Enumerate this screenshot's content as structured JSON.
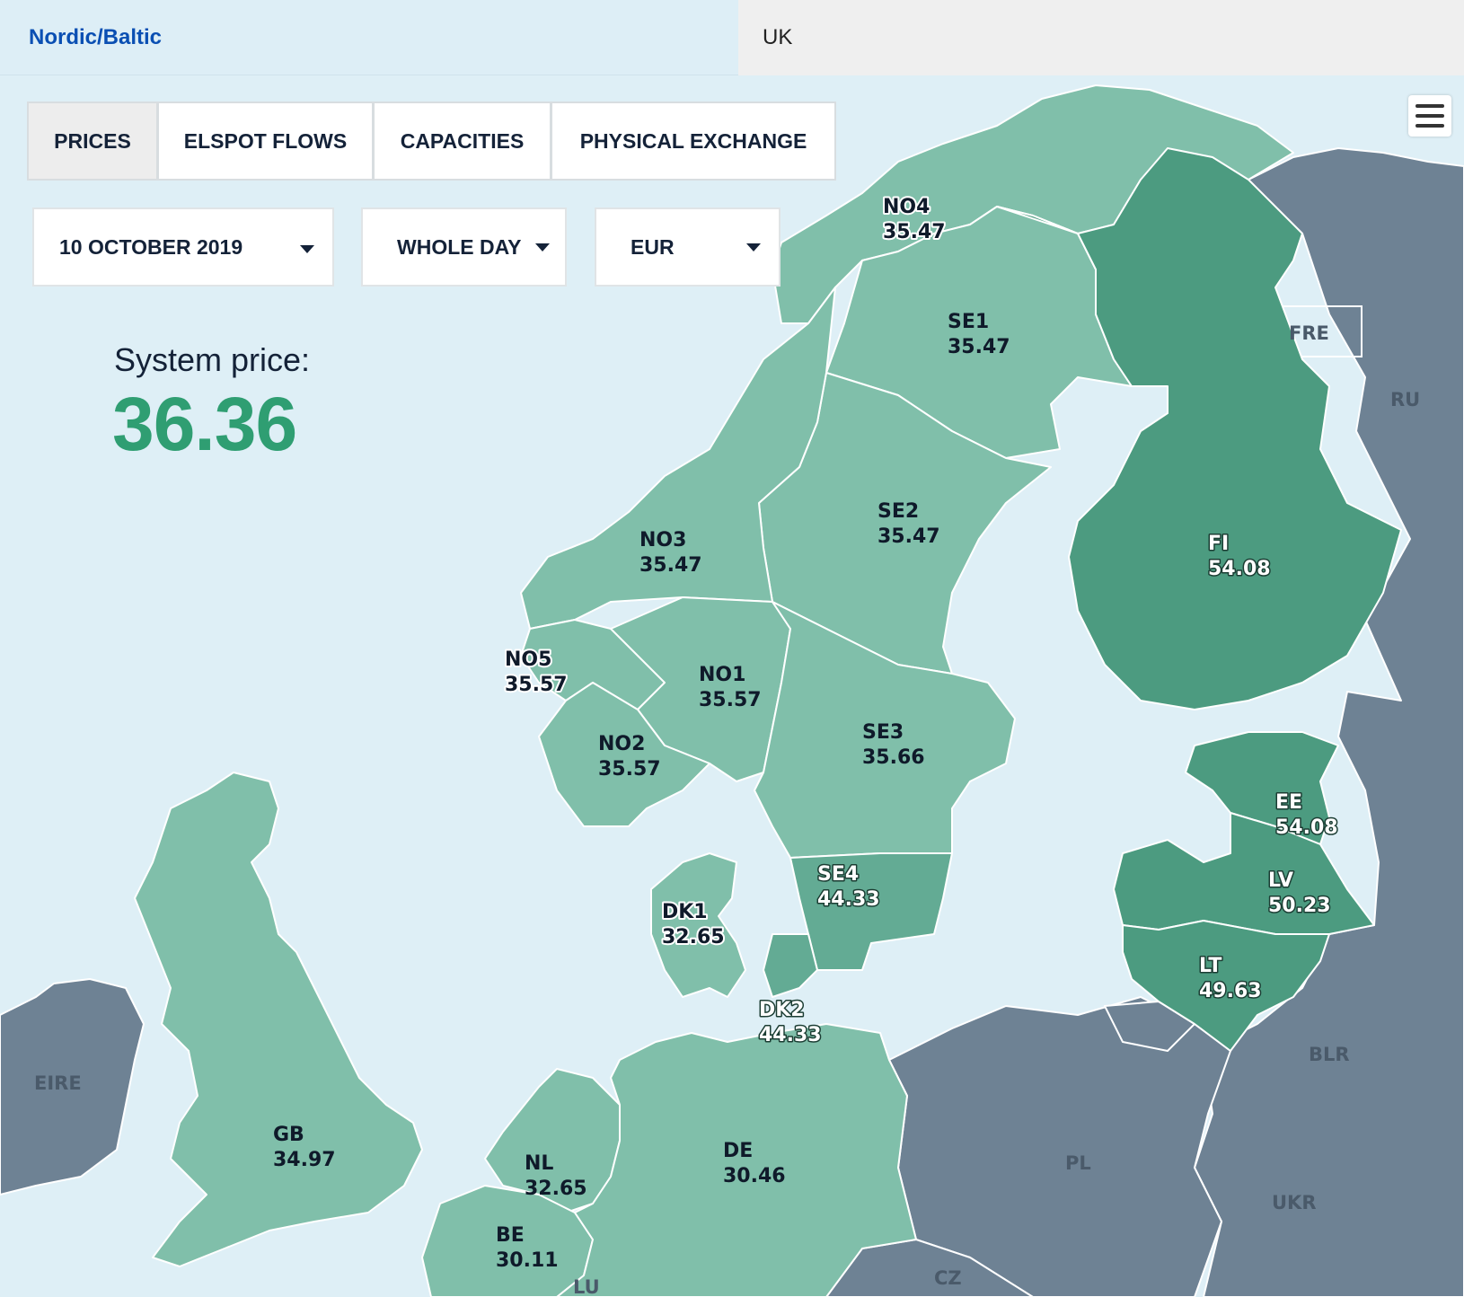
{
  "region_tabs": [
    {
      "label": "Nordic/Baltic"
    },
    {
      "label": "UK"
    }
  ],
  "view_tabs": [
    {
      "label": "PRICES"
    },
    {
      "label": "ELSPOT FLOWS"
    },
    {
      "label": "CAPACITIES"
    },
    {
      "label": "PHYSICAL EXCHANGE"
    }
  ],
  "filters": {
    "date": "10 OCTOBER 2019",
    "period": "WHOLE DAY",
    "currency": "EUR"
  },
  "system_price": {
    "label": "System price:",
    "value": "36.36"
  },
  "icons": {
    "menu": "hamburger-menu-icon",
    "dropdown": "caret-down-icon"
  },
  "colors": {
    "low_price": "#80bfaa",
    "mid_price": "#63ab94",
    "high_price": "#4c9b80",
    "non_member": "#6e8294",
    "sea": "#deeff6",
    "system_price": "#2f9e72",
    "region_link": "#0a4fb3"
  },
  "zones": [
    {
      "name": "NO4",
      "price": "35.47"
    },
    {
      "name": "SE1",
      "price": "35.47"
    },
    {
      "name": "SE2",
      "price": "35.47"
    },
    {
      "name": "NO3",
      "price": "35.47"
    },
    {
      "name": "FI",
      "price": "54.08"
    },
    {
      "name": "NO5",
      "price": "35.57"
    },
    {
      "name": "NO1",
      "price": "35.57"
    },
    {
      "name": "NO2",
      "price": "35.57"
    },
    {
      "name": "SE3",
      "price": "35.66"
    },
    {
      "name": "EE",
      "price": "54.08"
    },
    {
      "name": "SE4",
      "price": "44.33"
    },
    {
      "name": "LV",
      "price": "50.23"
    },
    {
      "name": "DK1",
      "price": "32.65"
    },
    {
      "name": "LT",
      "price": "49.63"
    },
    {
      "name": "DK2",
      "price": "44.33"
    },
    {
      "name": "GB",
      "price": "34.97"
    },
    {
      "name": "DE",
      "price": "30.46"
    },
    {
      "name": "NL",
      "price": "32.65"
    },
    {
      "name": "BE",
      "price": "30.11"
    }
  ],
  "neighbors": [
    {
      "name": "FRE"
    },
    {
      "name": "RU"
    },
    {
      "name": "EIRE"
    },
    {
      "name": "BLR"
    },
    {
      "name": "PL"
    },
    {
      "name": "UKR"
    },
    {
      "name": "CZ"
    },
    {
      "name": "LU"
    }
  ]
}
